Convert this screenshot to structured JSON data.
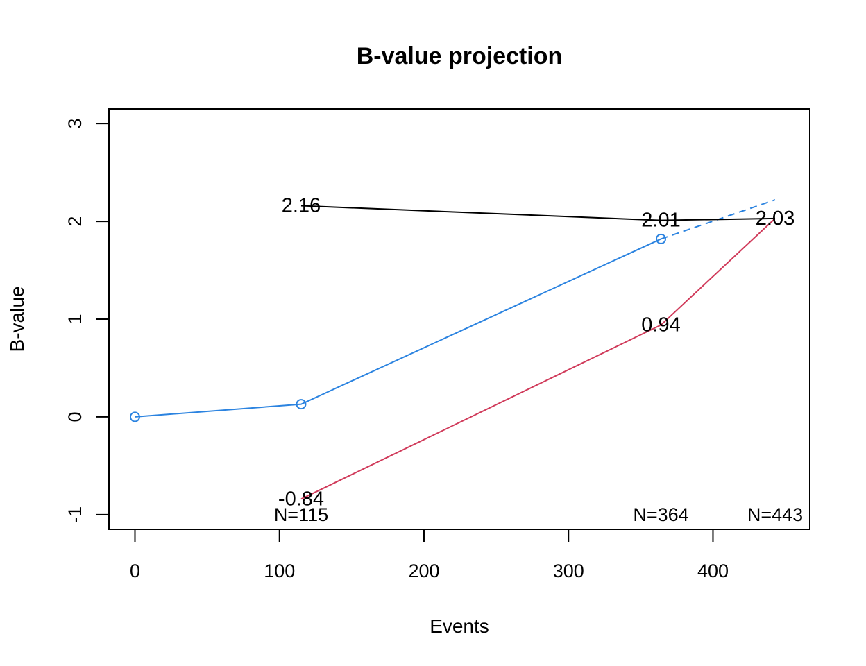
{
  "chart_data": {
    "type": "line",
    "title": "B-value projection",
    "xlabel": "Events",
    "ylabel": "B-value",
    "xlim": [
      -18,
      467
    ],
    "ylim": [
      -1.15,
      3.15
    ],
    "x_ticks": [
      0,
      100,
      200,
      300,
      400
    ],
    "y_ticks": [
      -1,
      0,
      1,
      2,
      3
    ],
    "grid": false,
    "legend": "none",
    "colors": {
      "bvalue": "#2b83e0",
      "lower": "#d03a5a",
      "upper": "#000000"
    },
    "series": [
      {
        "id": "bvalue",
        "style": "solid",
        "marker": "circle",
        "points": [
          {
            "x": 0,
            "y": 0.0
          },
          {
            "x": 115,
            "y": 0.13
          },
          {
            "x": 364,
            "y": 1.82
          }
        ]
      },
      {
        "id": "bvalue-projection",
        "style": "dashed",
        "marker": "none",
        "color_key": "bvalue",
        "points": [
          {
            "x": 364,
            "y": 1.82
          },
          {
            "x": 443,
            "y": 2.22
          }
        ]
      },
      {
        "id": "lower",
        "style": "solid",
        "marker": "none",
        "color_key": "lower",
        "points": [
          {
            "x": 115,
            "y": -0.84
          },
          {
            "x": 364,
            "y": 0.94
          },
          {
            "x": 443,
            "y": 2.03
          }
        ]
      },
      {
        "id": "upper",
        "style": "solid",
        "marker": "none",
        "color_key": "upper",
        "points": [
          {
            "x": 115,
            "y": 2.16
          },
          {
            "x": 364,
            "y": 2.01
          },
          {
            "x": 443,
            "y": 2.03
          }
        ]
      }
    ],
    "data_labels": [
      {
        "x": 115,
        "y": 2.16,
        "text": "2.16"
      },
      {
        "x": 364,
        "y": 2.01,
        "text": "2.01"
      },
      {
        "x": 443,
        "y": 2.03,
        "text": "2.03"
      },
      {
        "x": 443,
        "y": 2.03,
        "text": "2.03"
      },
      {
        "x": 364,
        "y": 0.94,
        "text": "0.94"
      },
      {
        "x": 115,
        "y": -0.84,
        "text": "-0.84"
      }
    ],
    "n_labels": [
      {
        "x": 115,
        "text": "N=115"
      },
      {
        "x": 364,
        "text": "N=364"
      },
      {
        "x": 443,
        "text": "N=443"
      }
    ]
  }
}
